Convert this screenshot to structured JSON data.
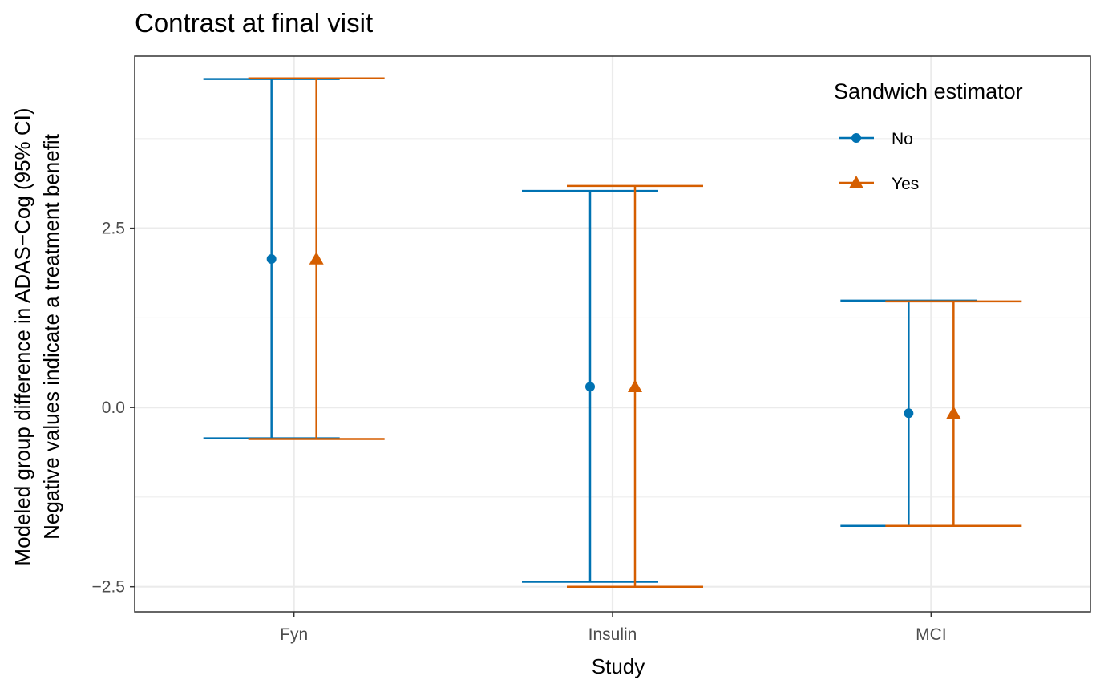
{
  "chart_data": {
    "type": "errorbar",
    "title": "Contrast at final visit",
    "xlabel": "Study",
    "ylabel_line1": "Modeled group difference in ADAS−Cog (95% CI)",
    "ylabel_line2": "Negative values indicate a treatment benefit",
    "categories": [
      "Fyn",
      "Insulin",
      "MCI"
    ],
    "yticks": [
      -2.5,
      0.0,
      2.5
    ],
    "ytick_labels": [
      "−2.5",
      "0.0",
      "2.5"
    ],
    "ylim": [
      -2.85,
      4.9
    ],
    "grid": true,
    "legend": {
      "title": "Sandwich estimator",
      "position": "top-right"
    },
    "series": [
      {
        "name": "No",
        "color": "#0072B2",
        "marker": "circle",
        "estimate": [
          2.07,
          0.29,
          -0.08
        ],
        "lower": [
          -0.43,
          -2.43,
          -1.65
        ],
        "upper": [
          4.58,
          3.02,
          1.49
        ]
      },
      {
        "name": "Yes",
        "color": "#D55E00",
        "marker": "triangle",
        "estimate": [
          2.07,
          0.29,
          -0.08
        ],
        "lower": [
          -0.44,
          -2.5,
          -1.65
        ],
        "upper": [
          4.59,
          3.09,
          1.48
        ]
      }
    ]
  }
}
